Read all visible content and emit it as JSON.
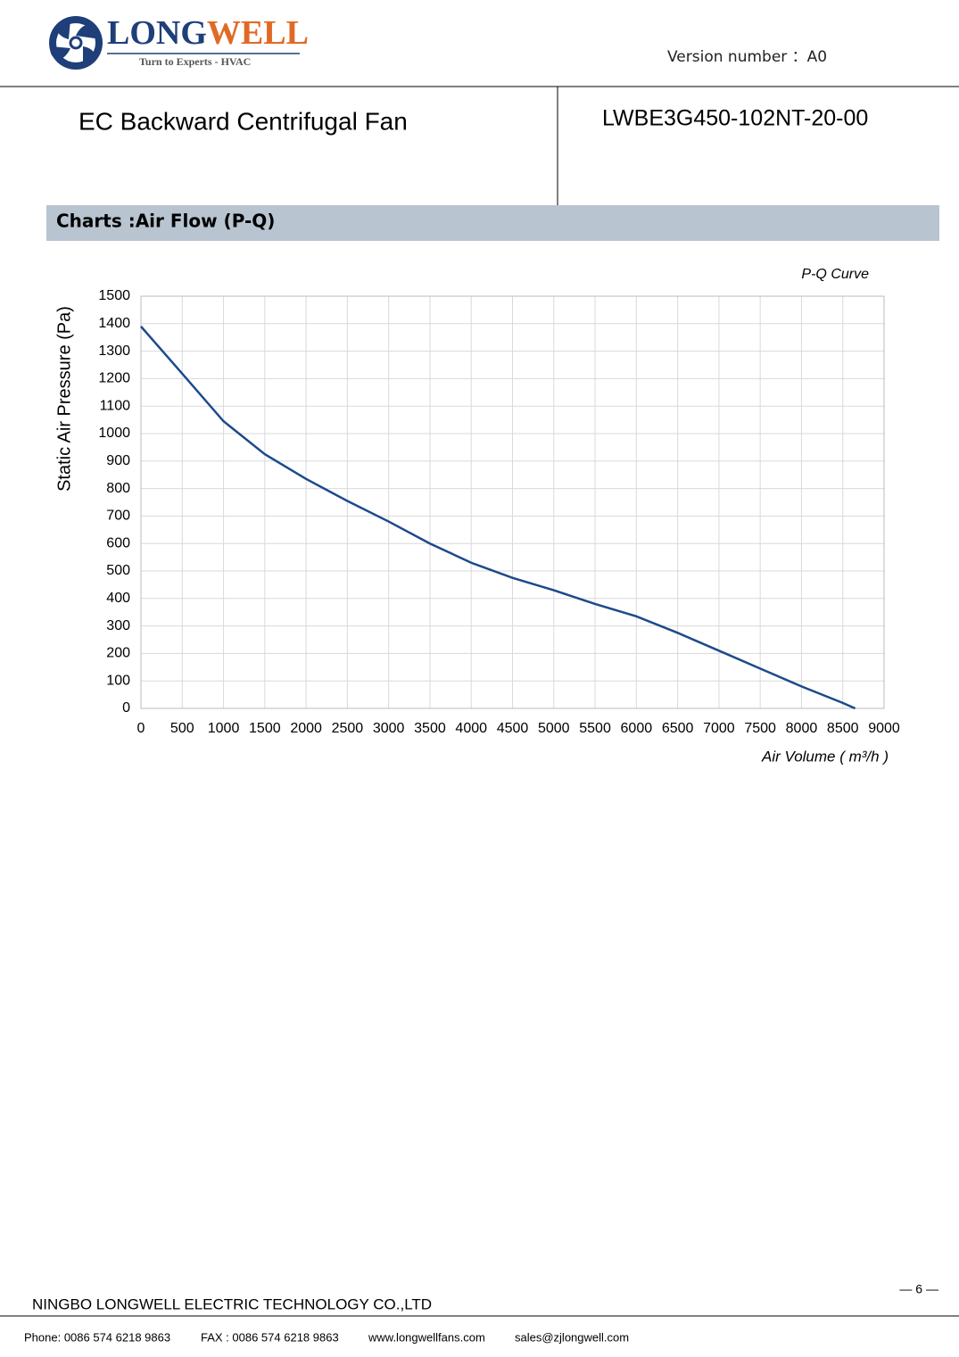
{
  "header": {
    "logo_parts": [
      "LONG",
      "WELL"
    ],
    "tagline": "Turn to Experts - HVAC",
    "version": "Version number ：A0"
  },
  "title": "EC Backward Centrifugal Fan",
  "model": "LWBE3G450-102NT-20-00",
  "section_title": "Charts :Air Flow (P-Q)",
  "chart_data": {
    "type": "line",
    "title": "P-Q Curve",
    "x_label": "Air Volume ( m³/h )",
    "y_label": "Static Air Pressure  (Pa)",
    "x": [
      0,
      500,
      1000,
      1500,
      2000,
      2500,
      3000,
      3500,
      4000,
      4500,
      5000,
      5500,
      6000,
      6500,
      7000,
      7500,
      8000,
      8500,
      8650
    ],
    "values": [
      1390,
      1218,
      1045,
      925,
      835,
      755,
      680,
      600,
      530,
      475,
      430,
      380,
      335,
      275,
      210,
      145,
      80,
      20,
      0
    ],
    "color": "#1c4a8c",
    "xlim": [
      0,
      9000
    ],
    "ylim": [
      0,
      1500
    ],
    "xticks": [
      0,
      500,
      1000,
      1500,
      2000,
      2500,
      3000,
      3500,
      4000,
      4500,
      5000,
      5500,
      6000,
      6500,
      7000,
      7500,
      8000,
      8500,
      9000
    ],
    "yticks": [
      0,
      100,
      200,
      300,
      400,
      500,
      600,
      700,
      800,
      900,
      1000,
      1100,
      1200,
      1300,
      1400,
      1500
    ],
    "grid": true
  },
  "footer": {
    "company": "NINGBO LONGWELL ELECTRIC TECHNOLOGY CO.,LTD",
    "page": "— 6 —",
    "phone": "Phone: 0086 574 6218 9863",
    "fax": "FAX : 0086 574 6218 9863",
    "web": "www.longwellfans.com",
    "email": "sales@zjlongwell.com"
  }
}
